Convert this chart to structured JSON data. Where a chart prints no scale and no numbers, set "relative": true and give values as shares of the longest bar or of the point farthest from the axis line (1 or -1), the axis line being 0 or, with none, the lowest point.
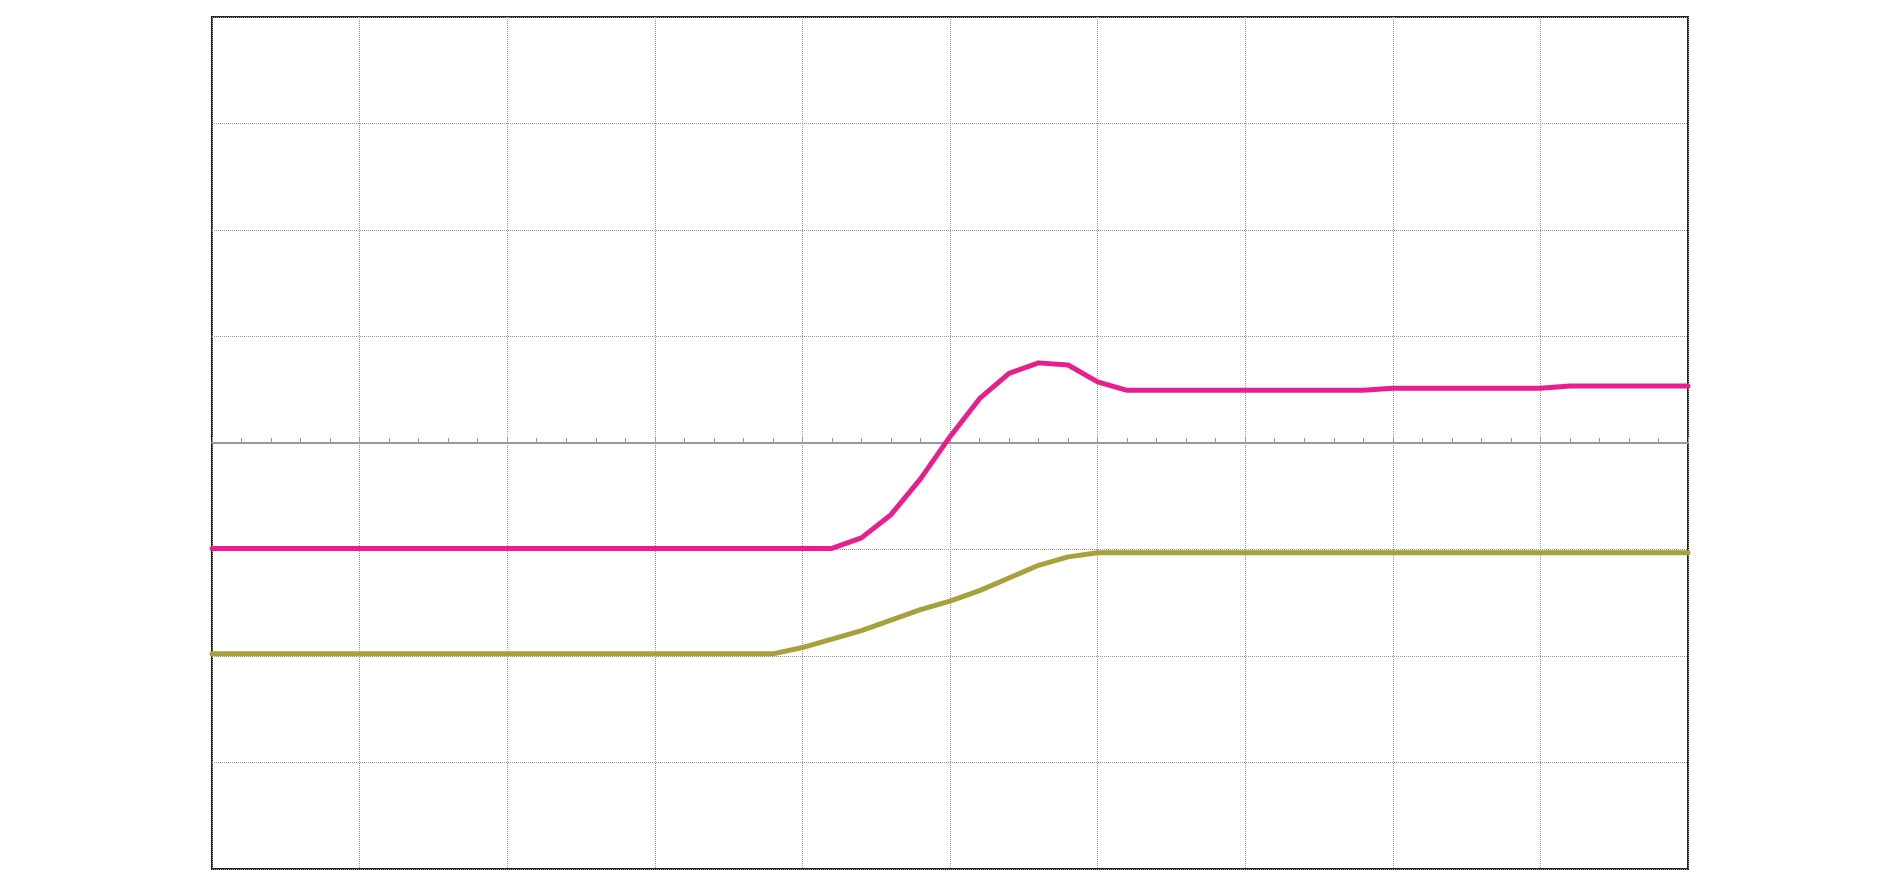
{
  "chart_data": {
    "type": "line",
    "relative": true,
    "grid": true,
    "tick_labels": false,
    "marker": "none",
    "line_style": "solid",
    "categories": [
      null,
      null,
      null,
      null,
      null,
      null,
      null,
      null,
      null,
      null,
      null,
      null,
      null,
      null,
      null,
      null,
      null,
      null,
      null,
      null,
      null,
      null,
      null,
      null,
      null,
      null,
      null,
      null,
      null,
      null,
      null,
      null,
      null,
      null,
      null,
      null,
      null,
      null,
      null,
      null,
      null,
      null,
      null,
      null,
      null,
      null,
      null,
      null,
      null,
      null,
      null
    ],
    "series": [
      {
        "color": "#e91e8c",
        "values": [
          -0.5,
          -0.5,
          -0.5,
          -0.5,
          -0.5,
          -0.5,
          -0.5,
          -0.5,
          -0.5,
          -0.5,
          -0.5,
          -0.5,
          -0.5,
          -0.5,
          -0.5,
          -0.5,
          -0.5,
          -0.5,
          -0.5,
          -0.5,
          -0.5,
          -0.5,
          -0.45,
          -0.34,
          -0.17,
          0.03,
          0.21,
          0.33,
          0.38,
          0.37,
          0.29,
          0.25,
          0.25,
          0.25,
          0.25,
          0.25,
          0.25,
          0.25,
          0.25,
          0.25,
          0.26,
          0.26,
          0.26,
          0.26,
          0.26,
          0.26,
          0.27,
          0.27,
          0.27,
          0.27,
          0.27
        ]
      },
      {
        "color": "#a8a03a",
        "values": [
          -1,
          -1,
          -1,
          -1,
          -1,
          -1,
          -1,
          -1,
          -1,
          -1,
          -1,
          -1,
          -1,
          -1,
          -1,
          -1,
          -1,
          -1,
          -1,
          -1,
          -0.97,
          -0.93,
          -0.89,
          -0.84,
          -0.79,
          -0.75,
          -0.7,
          -0.64,
          -0.58,
          -0.54,
          -0.52,
          -0.52,
          -0.52,
          -0.52,
          -0.52,
          -0.52,
          -0.52,
          -0.52,
          -0.52,
          -0.52,
          -0.52,
          -0.52,
          -0.52,
          -0.52,
          -0.52,
          -0.52,
          -0.52,
          -0.52,
          -0.52,
          -0.52,
          -0.52
        ]
      }
    ]
  }
}
